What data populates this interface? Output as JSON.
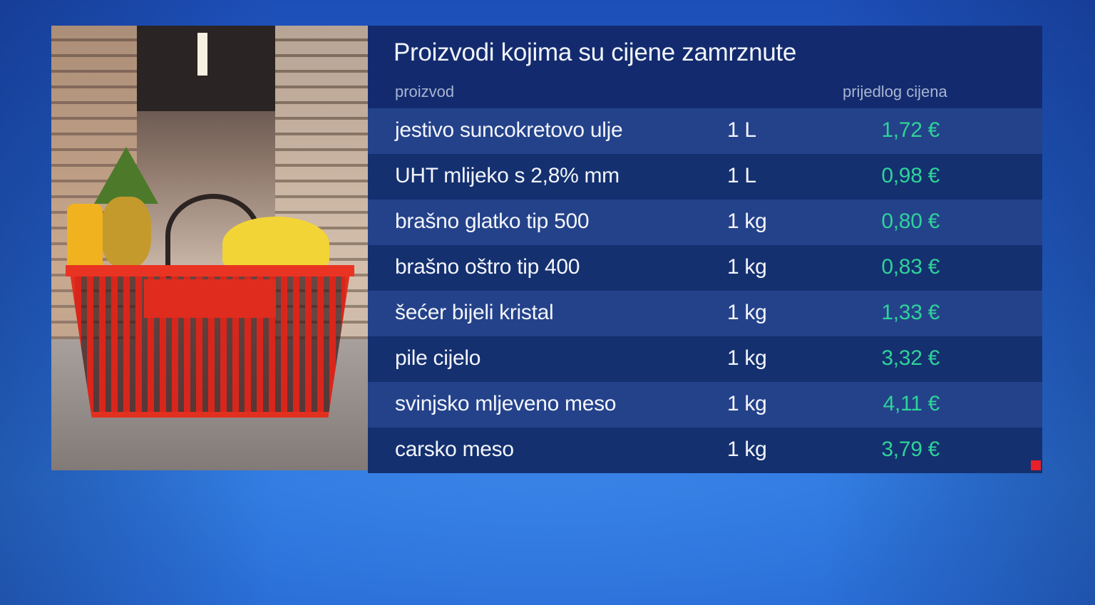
{
  "title": "Proizvodi kojima su cijene zamrznute",
  "headers": {
    "product": "proizvod",
    "price": "prijedlog cijena"
  },
  "rows": [
    {
      "name": "jestivo suncokretovo ulje",
      "unit": "1 L",
      "price": "1,72 €"
    },
    {
      "name": "UHT mlijeko s 2,8% mm",
      "unit": "1 L",
      "price": "0,98 €"
    },
    {
      "name": "brašno glatko tip 500",
      "unit": "1 kg",
      "price": "0,80 €"
    },
    {
      "name": "brašno oštro tip 400",
      "unit": "1 kg",
      "price": "0,83 €"
    },
    {
      "name": "šećer bijeli kristal",
      "unit": "1 kg",
      "price": "1,33 €"
    },
    {
      "name": "pile cijelo",
      "unit": "1 kg",
      "price": "3,32 €"
    },
    {
      "name": "svinjsko mljeveno meso",
      "unit": "1 kg",
      "price": "4,11 €"
    },
    {
      "name": "carsko meso",
      "unit": "1 kg",
      "price": "3,79 €"
    }
  ],
  "colors": {
    "price": "#2fd29a",
    "panel": "#132b6e",
    "background": "#2566d0",
    "marker": "#e8202a"
  }
}
